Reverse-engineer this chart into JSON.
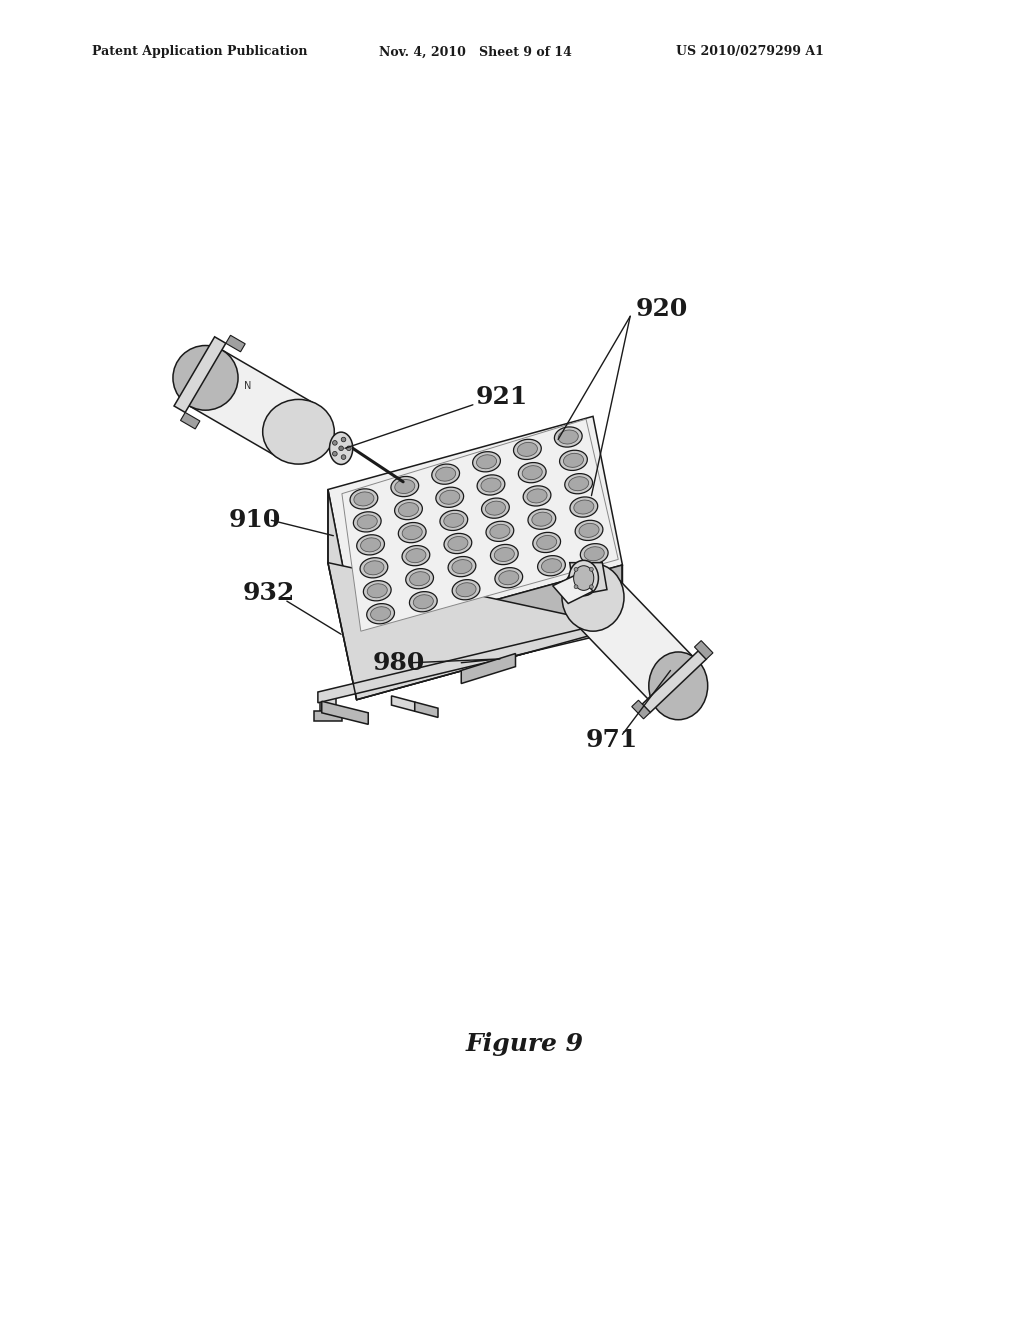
{
  "background_color": "#ffffff",
  "header_left": "Patent Application Publication",
  "header_mid": "Nov. 4, 2010   Sheet 9 of 14",
  "header_right": "US 2010/0279299 A1",
  "figure_caption": "Figure 9",
  "line_color": "#1a1a1a",
  "text_color": "#1a1a1a",
  "lw": 1.1,
  "fc_light": "#f0f0f0",
  "fc_mid": "#d8d8d8",
  "fc_dark": "#b8b8b8",
  "fc_darker": "#a0a0a0"
}
